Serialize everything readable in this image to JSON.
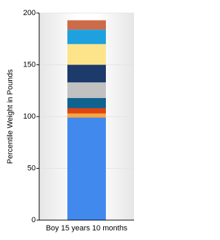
{
  "chart_data": {
    "type": "stacked-bar",
    "y_label": "Percentile Weight in Pounds",
    "categories": [
      "Boy 15 years 10 months"
    ],
    "series": [
      {
        "color": "#4289ee",
        "values": [
          99
        ]
      },
      {
        "color": "#f5a742",
        "values": [
          4
        ]
      },
      {
        "color": "#e2440f",
        "values": [
          5
        ]
      },
      {
        "color": "#10628f",
        "values": [
          10
        ]
      },
      {
        "color": "#c1c1c1",
        "values": [
          15
        ]
      },
      {
        "color": "#1c3a6a",
        "values": [
          17
        ]
      },
      {
        "color": "#fde48b",
        "values": [
          20
        ]
      },
      {
        "color": "#1fa1df",
        "values": [
          14
        ]
      },
      {
        "color": "#cd6a48",
        "values": [
          9
        ]
      }
    ],
    "ylim": [
      0,
      200
    ],
    "yticks": [
      0,
      50,
      100,
      150,
      200
    ],
    "grid": true
  }
}
